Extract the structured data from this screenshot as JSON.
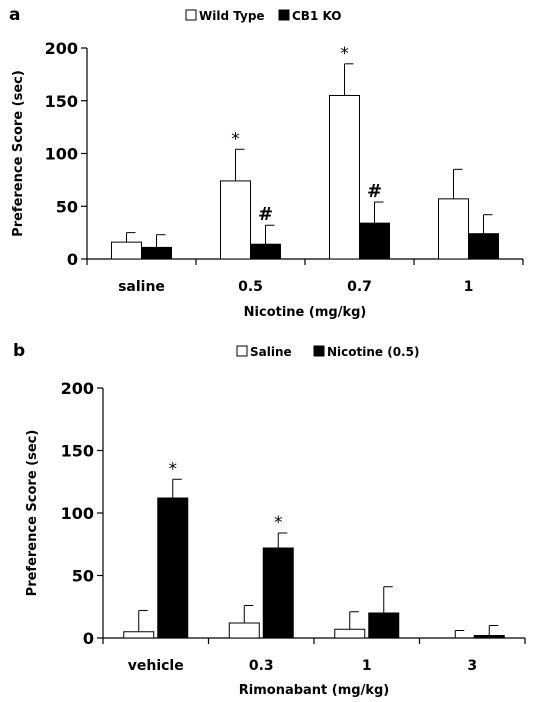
{
  "chart_data": [
    {
      "panel_label": "a",
      "type": "bar",
      "categories": [
        "saline",
        "0.5",
        "0.7",
        "1"
      ],
      "xlabel": "Nicotine (mg/kg)",
      "ylabel": "Preference Score (sec)",
      "ylim": [
        0,
        200
      ],
      "yticks": [
        "0",
        "50",
        "100",
        "150",
        "200"
      ],
      "legend": [
        "Wild Type",
        "CB1 KO"
      ],
      "series": [
        {
          "name": "Wild Type",
          "fill": "#ffffff",
          "values": [
            16,
            74,
            155,
            57
          ],
          "errors": [
            9,
            30,
            30,
            28
          ],
          "marks": [
            "",
            "*",
            "*",
            ""
          ]
        },
        {
          "name": "CB1 KO",
          "fill": "#000000",
          "values": [
            11,
            14,
            34,
            24
          ],
          "errors": [
            12,
            18,
            20,
            18
          ],
          "marks": [
            "",
            "#",
            "#",
            ""
          ]
        }
      ]
    },
    {
      "panel_label": "b",
      "type": "bar",
      "categories": [
        "vehicle",
        "0.3",
        "1",
        "3"
      ],
      "xlabel": "Rimonabant (mg/kg)",
      "ylabel": "Preference Score (sec)",
      "ylim": [
        0,
        200
      ],
      "yticks": [
        "0",
        "50",
        "100",
        "150",
        "200"
      ],
      "legend": [
        "Saline",
        "Nicotine (0.5)"
      ],
      "series": [
        {
          "name": "Saline",
          "fill": "#ffffff",
          "values": [
            5,
            12,
            7,
            0
          ],
          "errors": [
            17,
            14,
            14,
            6
          ],
          "marks": [
            "",
            "",
            "",
            ""
          ]
        },
        {
          "name": "Nicotine (0.5)",
          "fill": "#000000",
          "values": [
            112,
            72,
            20,
            2
          ],
          "errors": [
            15,
            12,
            21,
            8
          ],
          "marks": [
            "*",
            "*",
            "",
            ""
          ]
        }
      ]
    }
  ]
}
